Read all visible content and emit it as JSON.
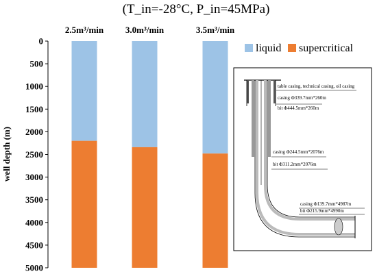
{
  "chart_data": {
    "type": "bar",
    "title": "(T_in=-28°C, P_in=45MPa)",
    "categories": [
      "2.5m³/min",
      "3.0m³/min",
      "3.5m³/min"
    ],
    "ylabel": "well depth (m)",
    "ylim": [
      0,
      5000
    ],
    "y_inverted": true,
    "y_ticks": [
      "0",
      "500",
      "1000",
      "1500",
      "2000",
      "2500",
      "3000",
      "3500",
      "4000",
      "4500",
      "5000"
    ],
    "grid": false,
    "legend_position": "top-right",
    "series": [
      {
        "name": "liquid",
        "color": "#9dc3e6",
        "values": [
          2200,
          2340,
          2480
        ]
      },
      {
        "name": "supercritical",
        "color": "#ed7d31",
        "values": [
          2800,
          2660,
          2520
        ]
      }
    ]
  },
  "inset": {
    "labels": {
      "casing_types": "table casing, technical casing, oil casing",
      "casing_1": "casing Φ339.7mm*260m",
      "bit_1": "bit Φ444.5mm*260m",
      "casing_2": "casing Φ244.5mm*2076m",
      "bit_2": "bit Φ311.2mm*2076m",
      "casing_3": "casing Φ139.7mm*4987m",
      "bit_3": "bit Φ215.9mm*4990m"
    }
  }
}
